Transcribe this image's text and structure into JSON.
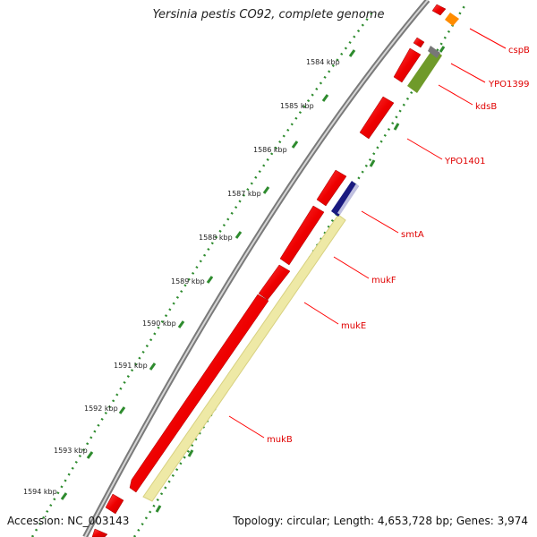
{
  "title": "Yersinia pestis CO92, complete genome",
  "footer": {
    "accession": "Accession: NC_003143",
    "summary": "Topology: circular; Length: 4,653,728 bp; Genes: 3,974"
  },
  "colors": {
    "backbone": "#8c8c8c",
    "gene": "#ff0000",
    "ruler": "#2e8b2e",
    "label_line": "#ff0000",
    "mukB_band": "#eee9a6",
    "smtA_band": "#1a1a80",
    "kdsB_band": "#6f9a2a",
    "cspB_band": "#ff8c00"
  },
  "ruler_ticks": [
    "1584 kbp",
    "1585 kbp",
    "1586 kbp",
    "1587 kbp",
    "1588 kbp",
    "1589 kbp",
    "1590 kbp",
    "1591 kbp",
    "1592 kbp",
    "1593 kbp",
    "1594 kbp"
  ],
  "gene_labels": [
    "cspB",
    "YPO1399",
    "kdsB",
    "YPO1401",
    "smtA",
    "mukF",
    "mukE",
    "mukB"
  ]
}
